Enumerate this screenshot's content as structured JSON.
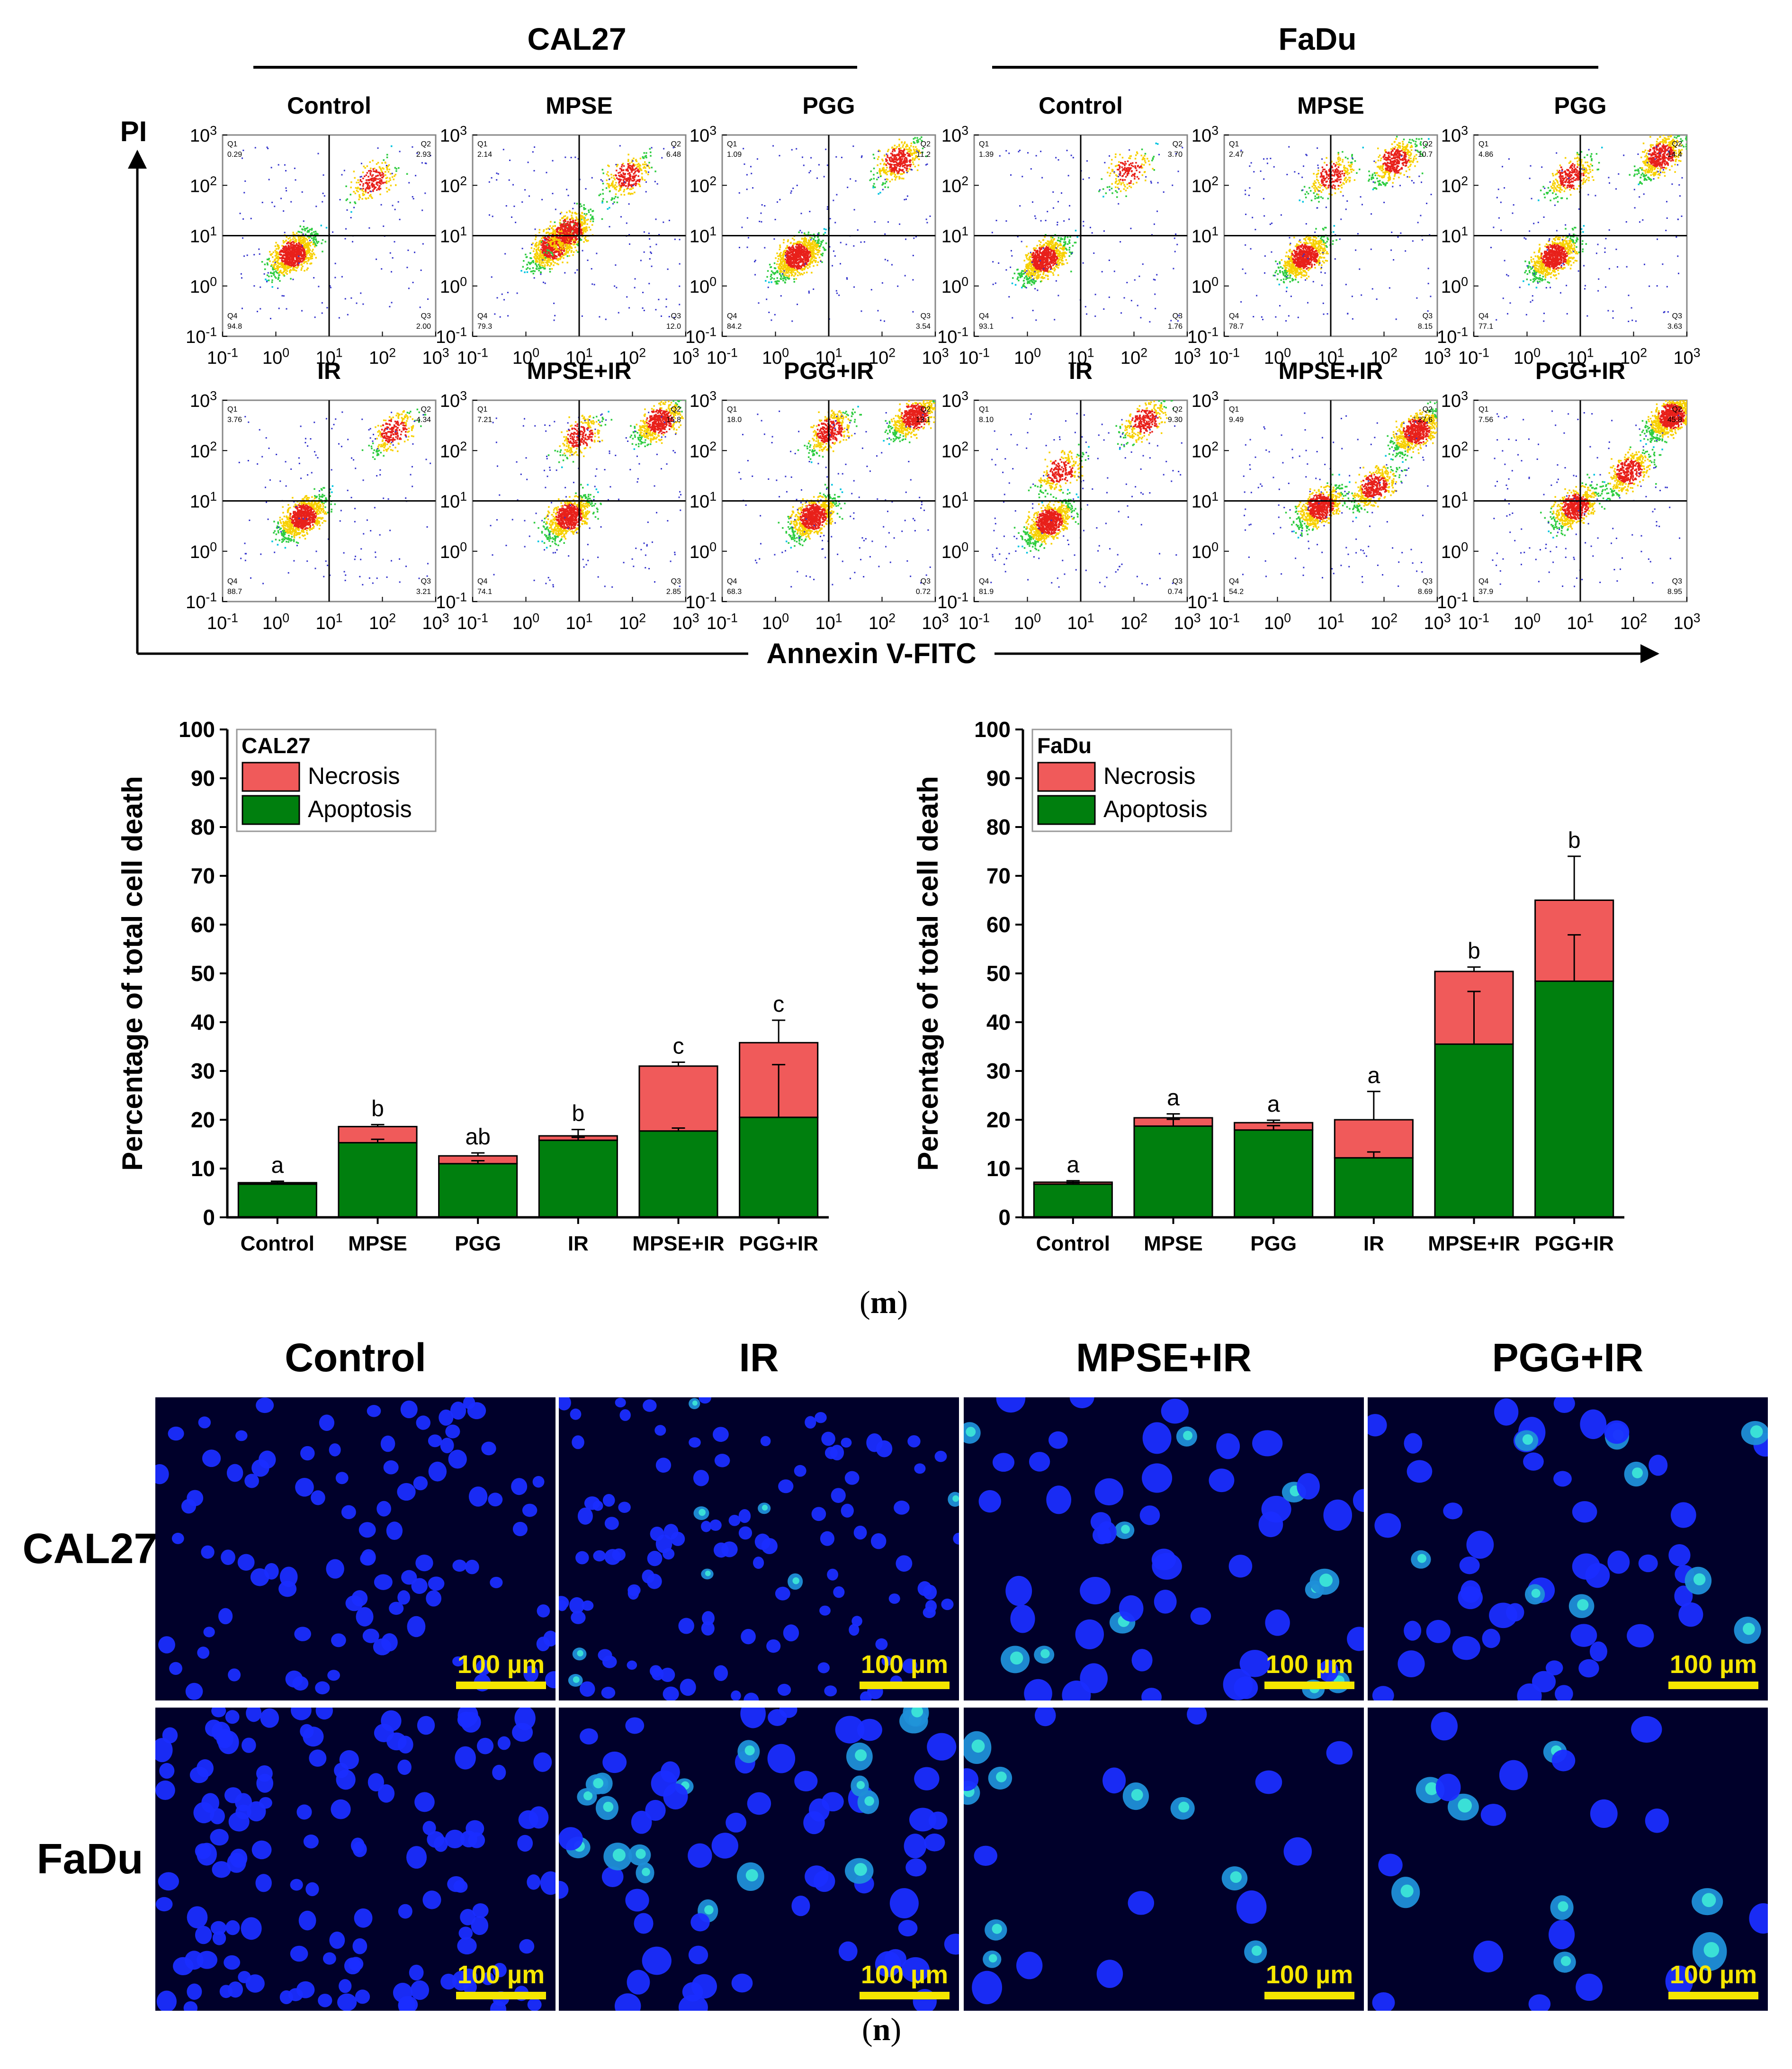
{
  "panel_m": "m",
  "panel_n": "n",
  "flow": {
    "cell_lines": [
      "CAL27",
      "FaDu"
    ],
    "y_axis": "PI",
    "x_axis": "Annexin V-FITC",
    "tick_labels": [
      "10-1",
      "100",
      "101",
      "102",
      "103"
    ],
    "plots": [
      {
        "line": "CAL27",
        "row": 0,
        "title": "Control",
        "q1": "0.29",
        "q2": "2.93",
        "q3": "2.00",
        "q4": "94.8",
        "clusters": [
          [
            0.3,
            0.65,
            1.0
          ],
          [
            1.8,
            2.1,
            0.25
          ]
        ]
      },
      {
        "line": "CAL27",
        "row": 0,
        "title": "MPSE",
        "q1": "2.14",
        "q2": "6.48",
        "q3": "12.0",
        "q4": "79.3",
        "clusters": [
          [
            0.5,
            0.8,
            0.9
          ],
          [
            1.9,
            2.2,
            0.35
          ],
          [
            0.8,
            1.1,
            0.6
          ]
        ]
      },
      {
        "line": "CAL27",
        "row": 0,
        "title": "PGG",
        "q1": "1.09",
        "q2": "11.2",
        "q3": "3.54",
        "q4": "84.2",
        "clusters": [
          [
            0.4,
            0.6,
            1.0
          ],
          [
            2.3,
            2.5,
            0.45
          ]
        ]
      },
      {
        "line": "FaDu",
        "row": 0,
        "title": "Control",
        "q1": "1.39",
        "q2": "3.70",
        "q3": "1.76",
        "q4": "93.1",
        "clusters": [
          [
            0.3,
            0.55,
            1.0
          ],
          [
            1.9,
            2.3,
            0.2
          ]
        ]
      },
      {
        "line": "FaDu",
        "row": 0,
        "title": "MPSE",
        "q1": "2.47",
        "q2": "10.7",
        "q3": "8.15",
        "q4": "78.7",
        "clusters": [
          [
            0.5,
            0.6,
            0.9
          ],
          [
            2.2,
            2.5,
            0.5
          ],
          [
            1.0,
            2.2,
            0.3
          ]
        ]
      },
      {
        "line": "FaDu",
        "row": 0,
        "title": "PGG",
        "q1": "4.86",
        "q2": "14.4",
        "q3": "3.63",
        "q4": "77.1",
        "clusters": [
          [
            0.5,
            0.6,
            0.9
          ],
          [
            2.5,
            2.6,
            0.6
          ],
          [
            0.8,
            2.2,
            0.35
          ]
        ]
      },
      {
        "line": "CAL27",
        "row": 1,
        "title": "IR",
        "q1": "3.76",
        "q2": "4.34",
        "q3": "3.21",
        "q4": "88.7",
        "clusters": [
          [
            0.5,
            0.7,
            1.0
          ],
          [
            2.2,
            2.4,
            0.3
          ]
        ]
      },
      {
        "line": "CAL27",
        "row": 1,
        "title": "MPSE+IR",
        "q1": "7.21",
        "q2": "15.8",
        "q3": "2.85",
        "q4": "74.1",
        "clusters": [
          [
            0.8,
            0.7,
            0.9
          ],
          [
            2.5,
            2.6,
            0.6
          ],
          [
            1.0,
            2.3,
            0.3
          ]
        ]
      },
      {
        "line": "CAL27",
        "row": 1,
        "title": "PGG+IR",
        "q1": "18.0",
        "q2": "13.1",
        "q3": "0.72",
        "q4": "68.3",
        "clusters": [
          [
            0.7,
            0.7,
            0.9
          ],
          [
            2.6,
            2.7,
            0.7
          ],
          [
            1.0,
            2.4,
            0.45
          ]
        ]
      },
      {
        "line": "FaDu",
        "row": 1,
        "title": "IR",
        "q1": "8.10",
        "q2": "9.30",
        "q3": "0.74",
        "q4": "81.9",
        "clusters": [
          [
            0.4,
            0.6,
            1.0
          ],
          [
            2.2,
            2.6,
            0.35
          ],
          [
            0.6,
            1.6,
            0.3
          ]
        ]
      },
      {
        "line": "FaDu",
        "row": 1,
        "title": "MPSE+IR",
        "q1": "9.49",
        "q2": "27.6",
        "q3": "8.69",
        "q4": "54.2",
        "clusters": [
          [
            0.8,
            0.9,
            0.8
          ],
          [
            2.6,
            2.4,
            0.8
          ],
          [
            1.8,
            1.3,
            0.5
          ]
        ]
      },
      {
        "line": "FaDu",
        "row": 1,
        "title": "PGG+IR",
        "q1": "7.56",
        "q2": "45.8",
        "q3": "8.95",
        "q4": "37.9",
        "clusters": [
          [
            0.9,
            0.9,
            0.7
          ],
          [
            2.7,
            2.7,
            1.0
          ],
          [
            1.9,
            1.6,
            0.5
          ]
        ]
      }
    ]
  },
  "chart_data": [
    {
      "type": "bar",
      "stacked": true,
      "legend_title": "CAL27",
      "legend_position": "top-left",
      "ylabel": "Percentage of total cell death",
      "ylim": [
        0,
        100
      ],
      "yticks": [
        "0",
        "10",
        "20",
        "30",
        "40",
        "50",
        "60",
        "70",
        "80",
        "90",
        "100"
      ],
      "categories": [
        "Control",
        "MPSE",
        "PGG",
        "IR",
        "MPSE+IR",
        "PGG+IR"
      ],
      "series": [
        {
          "name": "Apoptosis",
          "color": "#007f0e",
          "values": [
            6.8,
            15.3,
            11.0,
            15.8,
            17.7,
            20.5
          ],
          "errors": [
            0.3,
            0.7,
            0.6,
            0.6,
            0.6,
            10.8
          ]
        },
        {
          "name": "Necrosis",
          "color": "#f05a5a",
          "values": [
            0.3,
            3.3,
            1.6,
            0.9,
            13.3,
            15.3
          ],
          "errors": [
            0.3,
            0.4,
            0.6,
            1.3,
            0.8,
            4.6
          ]
        }
      ],
      "letters": [
        "a",
        "b",
        "ab",
        "b",
        "c",
        "c"
      ]
    },
    {
      "type": "bar",
      "stacked": true,
      "legend_title": "FaDu",
      "legend_position": "top-left",
      "ylabel": "Percentage of total cell death",
      "ylim": [
        0,
        100
      ],
      "yticks": [
        "0",
        "10",
        "20",
        "30",
        "40",
        "50",
        "60",
        "70",
        "80",
        "90",
        "100"
      ],
      "categories": [
        "Control",
        "MPSE",
        "PGG",
        "IR",
        "MPSE+IR",
        "PGG+IR"
      ],
      "series": [
        {
          "name": "Apoptosis",
          "color": "#007f0e",
          "values": [
            6.8,
            18.7,
            17.9,
            12.2,
            35.5,
            48.4
          ],
          "errors": [
            0.3,
            1.4,
            0.9,
            1.2,
            10.8,
            9.5
          ]
        },
        {
          "name": "Necrosis",
          "color": "#f05a5a",
          "values": [
            0.4,
            1.7,
            1.5,
            7.8,
            14.9,
            16.6
          ],
          "errors": [
            0.3,
            0.8,
            0.5,
            5.8,
            0.9,
            9.0
          ]
        }
      ],
      "letters": [
        "a",
        "a",
        "a",
        "a",
        "b",
        "b"
      ]
    }
  ],
  "micro": {
    "columns": [
      "Control",
      "IR",
      "MPSE+IR",
      "PGG+IR"
    ],
    "rows": [
      "CAL27",
      "FaDu"
    ],
    "scale_label": "100 µm",
    "bg_color": "#00002a",
    "nuclei_color": "#1a2dff",
    "bright_color": "#40f0d8"
  }
}
